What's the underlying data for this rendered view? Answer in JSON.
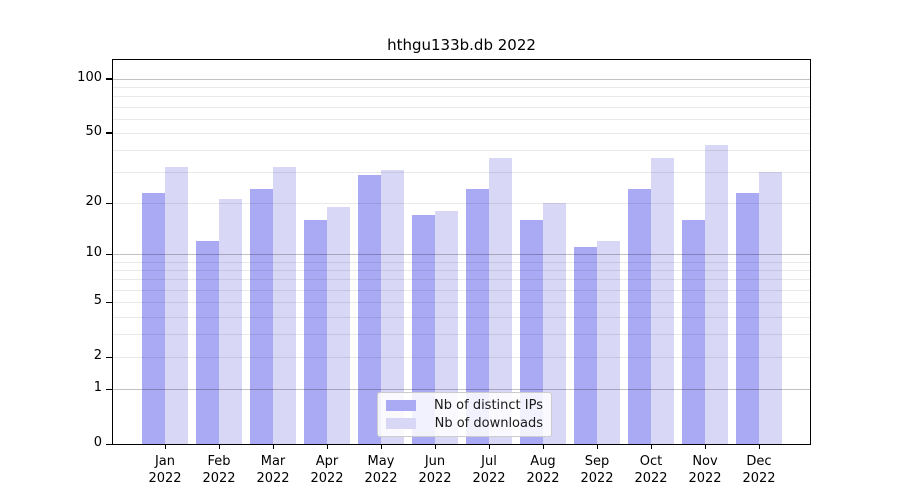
{
  "title": "hthgu133b.db 2022",
  "chart_data": {
    "type": "bar",
    "title": "hthgu133b.db 2022",
    "scale": "log1p",
    "categories": [
      "Jan 2022",
      "Feb 2022",
      "Mar 2022",
      "Apr 2022",
      "May 2022",
      "Jun 2022",
      "Jul 2022",
      "Aug 2022",
      "Sep 2022",
      "Oct 2022",
      "Nov 2022",
      "Dec 2022"
    ],
    "series": [
      {
        "name": "Nb of distinct IPs",
        "color": "#aaaaf4",
        "values": [
          23,
          12,
          24,
          16,
          29,
          17,
          24,
          16,
          11,
          24,
          16,
          23
        ]
      },
      {
        "name": "Nb of downloads",
        "color": "#d8d8f6",
        "values": [
          32,
          21,
          32,
          19,
          31,
          18,
          36,
          20,
          12,
          36,
          43,
          30
        ]
      }
    ],
    "xlabel": "",
    "ylabel": "",
    "ylim": [
      0,
      127
    ],
    "y_ticks_labeled": [
      100,
      50,
      20,
      10,
      5,
      2,
      1,
      0
    ],
    "y_gridlines_major": [
      1,
      10,
      100
    ],
    "y_gridlines_minor": [
      2,
      3,
      4,
      5,
      6,
      7,
      8,
      9,
      20,
      30,
      40,
      50,
      60,
      70,
      80,
      90
    ],
    "grid": true,
    "legend_position": "bottom-center",
    "colors": {
      "spine": "#000000",
      "grid_major": "#c2c2c2",
      "grid_minor": "#e9e9e9"
    }
  }
}
